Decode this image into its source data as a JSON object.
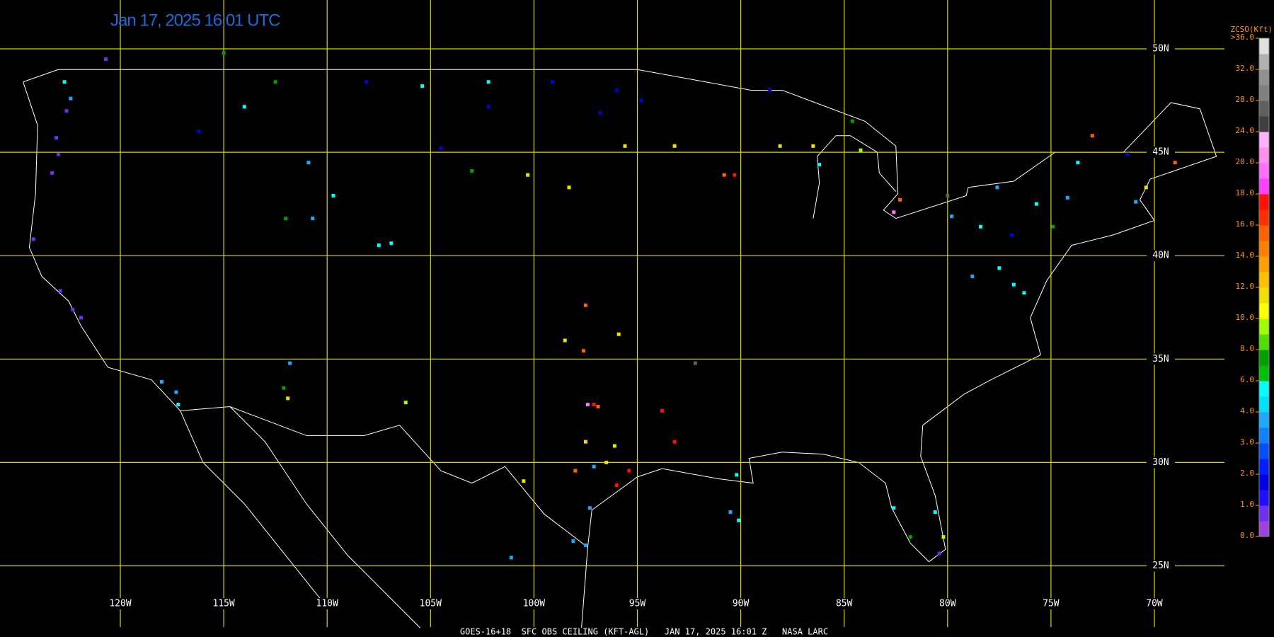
{
  "title": "Jan 17, 2025 16:01 UTC",
  "footer": "GOES-16+18  SFC OBS CEILING (KFT-AGL)   JAN 17, 2025 16:01 Z   NASA LARC",
  "grid": {
    "lons": [
      {
        "value": -120,
        "label": "120W"
      },
      {
        "value": -115,
        "label": "115W"
      },
      {
        "value": -110,
        "label": "110W"
      },
      {
        "value": -105,
        "label": "105W"
      },
      {
        "value": -100,
        "label": "100W"
      },
      {
        "value": -95,
        "label": "95W"
      },
      {
        "value": -90,
        "label": "90W"
      },
      {
        "value": -85,
        "label": "85W"
      },
      {
        "value": -80,
        "label": "80W"
      },
      {
        "value": -75,
        "label": "75W"
      },
      {
        "value": -70,
        "label": "70W"
      }
    ],
    "lats": [
      {
        "value": 50,
        "label": "50N"
      },
      {
        "value": 45,
        "label": "45N"
      },
      {
        "value": 40,
        "label": "40N"
      },
      {
        "value": 35,
        "label": "35N"
      },
      {
        "value": 30,
        "label": "30N"
      },
      {
        "value": 25,
        "label": "25N"
      }
    ],
    "color": "#d8d800"
  },
  "colorbar": {
    "header": "ZCSO(Kft)",
    "ticks": [
      {
        "value": 0,
        "label": "0.0"
      },
      {
        "value": 1,
        "label": "1.0"
      },
      {
        "value": 2,
        "label": "2.0"
      },
      {
        "value": 3,
        "label": "3.0"
      },
      {
        "value": 4,
        "label": "4.0"
      },
      {
        "value": 6,
        "label": "6.0"
      },
      {
        "value": 8,
        "label": "8.0"
      },
      {
        "value": 10,
        "label": "10.0"
      },
      {
        "value": 12,
        "label": "12.0"
      },
      {
        "value": 14,
        "label": "14.0"
      },
      {
        "value": 16,
        "label": "16.0"
      },
      {
        "value": 18,
        "label": "18.0"
      },
      {
        "value": 20,
        "label": "20.0"
      },
      {
        "value": 24,
        "label": "24.0"
      },
      {
        "value": 28,
        "label": "28.0"
      },
      {
        "value": 32,
        "label": "32.0"
      },
      {
        "value": 36,
        "label": ">36.0"
      }
    ],
    "colors": [
      "#a040e0",
      "#7030f0",
      "#2010ff",
      "#0000e0",
      "#0020ff",
      "#0050ff",
      "#1080ff",
      "#20a8ff",
      "#00e0ff",
      "#00ffff",
      "#00c000",
      "#00a000",
      "#50e000",
      "#a0ff00",
      "#ffff00",
      "#f0e000",
      "#ffc000",
      "#ffa000",
      "#ff8000",
      "#ff6000",
      "#ff3000",
      "#ff1000",
      "#ff40ff",
      "#ff70ff",
      "#ff90f0",
      "#ffb0ff",
      "#404040",
      "#606060",
      "#808080",
      "#909090",
      "#b0b0b0",
      "#e0e0e0"
    ]
  },
  "stations": [
    {
      "lon": -122.7,
      "lat": 48.4,
      "value": 5
    },
    {
      "lon": -122.4,
      "lat": 47.6,
      "value": 3.5
    },
    {
      "lon": -122.6,
      "lat": 47.0,
      "value": 0.5
    },
    {
      "lon": -123.1,
      "lat": 45.7,
      "value": 0.5
    },
    {
      "lon": -123.0,
      "lat": 44.9,
      "value": 0.5
    },
    {
      "lon": -123.3,
      "lat": 44.0,
      "value": 0.5
    },
    {
      "lon": -124.2,
      "lat": 40.8,
      "value": 0.5
    },
    {
      "lon": -122.3,
      "lat": 37.4,
      "value": 0.5
    },
    {
      "lon": -121.9,
      "lat": 37.0,
      "value": 0.5
    },
    {
      "lon": -122.9,
      "lat": 38.3,
      "value": 0.5
    },
    {
      "lon": -118.0,
      "lat": 33.9,
      "value": 3.5
    },
    {
      "lon": -117.3,
      "lat": 33.4,
      "value": 3.5
    },
    {
      "lon": -117.2,
      "lat": 32.8,
      "value": 5
    },
    {
      "lon": -120.7,
      "lat": 49.5,
      "value": 0.5
    },
    {
      "lon": -115.0,
      "lat": 49.8,
      "value": 7
    },
    {
      "lon": -112.5,
      "lat": 48.4,
      "value": 7
    },
    {
      "lon": -108.1,
      "lat": 48.4,
      "value": 1.5
    },
    {
      "lon": -105.4,
      "lat": 48.2,
      "value": 5
    },
    {
      "lon": -102.2,
      "lat": 48.4,
      "value": 5
    },
    {
      "lon": -99.1,
      "lat": 48.4,
      "value": 1.5
    },
    {
      "lon": -96.0,
      "lat": 48.0,
      "value": 1.5
    },
    {
      "lon": -114.0,
      "lat": 47.2,
      "value": 5
    },
    {
      "lon": -116.2,
      "lat": 46.0,
      "value": 1.5
    },
    {
      "lon": -110.9,
      "lat": 44.5,
      "value": 3.5
    },
    {
      "lon": -109.7,
      "lat": 42.9,
      "value": 5
    },
    {
      "lon": -107.5,
      "lat": 40.5,
      "value": 5
    },
    {
      "lon": -106.9,
      "lat": 40.6,
      "value": 5
    },
    {
      "lon": -112.0,
      "lat": 41.8,
      "value": 7
    },
    {
      "lon": -110.7,
      "lat": 41.8,
      "value": 3.5
    },
    {
      "lon": -102.2,
      "lat": 47.2,
      "value": 1.5
    },
    {
      "lon": -103.0,
      "lat": 44.1,
      "value": 7
    },
    {
      "lon": -104.5,
      "lat": 45.2,
      "value": 1.5
    },
    {
      "lon": -100.3,
      "lat": 43.9,
      "value": 11
    },
    {
      "lon": -98.3,
      "lat": 43.3,
      "value": 11
    },
    {
      "lon": -95.6,
      "lat": 45.3,
      "value": 11
    },
    {
      "lon": -93.2,
      "lat": 45.3,
      "value": 11
    },
    {
      "lon": -90.8,
      "lat": 43.9,
      "value": 15
    },
    {
      "lon": -90.3,
      "lat": 43.9,
      "value": 17
    },
    {
      "lon": -88.1,
      "lat": 45.3,
      "value": 11
    },
    {
      "lon": -86.5,
      "lat": 45.3,
      "value": 11
    },
    {
      "lon": -94.8,
      "lat": 47.5,
      "value": 1.5
    },
    {
      "lon": -96.8,
      "lat": 46.9,
      "value": 1.5
    },
    {
      "lon": -84.6,
      "lat": 46.5,
      "value": 7
    },
    {
      "lon": -84.2,
      "lat": 45.1,
      "value": 9
    },
    {
      "lon": -86.2,
      "lat": 44.4,
      "value": 5
    },
    {
      "lon": -82.3,
      "lat": 42.7,
      "value": 15
    },
    {
      "lon": -80.0,
      "lat": 42.9,
      "value": 26
    },
    {
      "lon": -82.6,
      "lat": 42.1,
      "value": 19
    },
    {
      "lon": -77.6,
      "lat": 43.3,
      "value": 3.5
    },
    {
      "lon": -75.7,
      "lat": 42.5,
      "value": 5
    },
    {
      "lon": -73.7,
      "lat": 44.5,
      "value": 5
    },
    {
      "lon": -71.3,
      "lat": 44.9,
      "value": 1.5
    },
    {
      "lon": -69.0,
      "lat": 44.5,
      "value": 15
    },
    {
      "lon": -70.4,
      "lat": 43.3,
      "value": 11
    },
    {
      "lon": -70.9,
      "lat": 42.6,
      "value": 3.5
    },
    {
      "lon": -78.4,
      "lat": 41.4,
      "value": 5
    },
    {
      "lon": -76.9,
      "lat": 41.0,
      "value": 1.5
    },
    {
      "lon": -74.9,
      "lat": 41.4,
      "value": 7
    },
    {
      "lon": -77.5,
      "lat": 39.4,
      "value": 5
    },
    {
      "lon": -76.8,
      "lat": 38.6,
      "value": 5
    },
    {
      "lon": -78.8,
      "lat": 39.0,
      "value": 3.5
    },
    {
      "lon": -76.3,
      "lat": 38.2,
      "value": 5
    },
    {
      "lon": -79.8,
      "lat": 41.9,
      "value": 3.5
    },
    {
      "lon": -74.2,
      "lat": 42.8,
      "value": 3.5
    },
    {
      "lon": -97.5,
      "lat": 37.6,
      "value": 15
    },
    {
      "lon": -95.9,
      "lat": 36.2,
      "value": 11
    },
    {
      "lon": -98.5,
      "lat": 35.9,
      "value": 11
    },
    {
      "lon": -97.6,
      "lat": 35.4,
      "value": 15
    },
    {
      "lon": -96.9,
      "lat": 32.7,
      "value": 15
    },
    {
      "lon": -97.1,
      "lat": 32.8,
      "value": 17
    },
    {
      "lon": -97.4,
      "lat": 32.8,
      "value": 19
    },
    {
      "lon": -97.5,
      "lat": 31.0,
      "value": 11
    },
    {
      "lon": -96.1,
      "lat": 30.8,
      "value": 11
    },
    {
      "lon": -96.5,
      "lat": 30.0,
      "value": 11
    },
    {
      "lon": -98.0,
      "lat": 29.6,
      "value": 15
    },
    {
      "lon": -97.1,
      "lat": 29.8,
      "value": 3.5
    },
    {
      "lon": -95.4,
      "lat": 29.6,
      "value": 17
    },
    {
      "lon": -96.0,
      "lat": 28.9,
      "value": 17
    },
    {
      "lon": -97.3,
      "lat": 27.8,
      "value": 3.5
    },
    {
      "lon": -98.1,
      "lat": 26.2,
      "value": 3.5
    },
    {
      "lon": -97.5,
      "lat": 26.0,
      "value": 3.5
    },
    {
      "lon": -100.5,
      "lat": 29.1,
      "value": 11
    },
    {
      "lon": -101.1,
      "lat": 25.4,
      "value": 3.5
    },
    {
      "lon": -93.8,
      "lat": 32.5,
      "value": 17
    },
    {
      "lon": -93.2,
      "lat": 31.0,
      "value": 17
    },
    {
      "lon": -92.2,
      "lat": 34.8,
      "value": 26
    },
    {
      "lon": -90.5,
      "lat": 27.6,
      "value": 3.5
    },
    {
      "lon": -90.1,
      "lat": 27.2,
      "value": 5
    },
    {
      "lon": -90.2,
      "lat": 29.4,
      "value": 5
    },
    {
      "lon": -82.6,
      "lat": 27.8,
      "value": 5
    },
    {
      "lon": -81.8,
      "lat": 26.4,
      "value": 7
    },
    {
      "lon": -80.4,
      "lat": 25.6,
      "value": 0.5
    },
    {
      "lon": -80.2,
      "lat": 26.4,
      "value": 9
    },
    {
      "lon": -80.6,
      "lat": 27.6,
      "value": 5
    },
    {
      "lon": -112.1,
      "lat": 33.6,
      "value": 7
    },
    {
      "lon": -111.9,
      "lat": 33.1,
      "value": 11
    },
    {
      "lon": -111.8,
      "lat": 34.8,
      "value": 3.5
    },
    {
      "lon": -106.2,
      "lat": 32.9,
      "value": 9
    },
    {
      "lon": -88.6,
      "lat": 48.0,
      "value": 1.5
    },
    {
      "lon": -73.0,
      "lat": 45.8,
      "value": 15
    }
  ]
}
